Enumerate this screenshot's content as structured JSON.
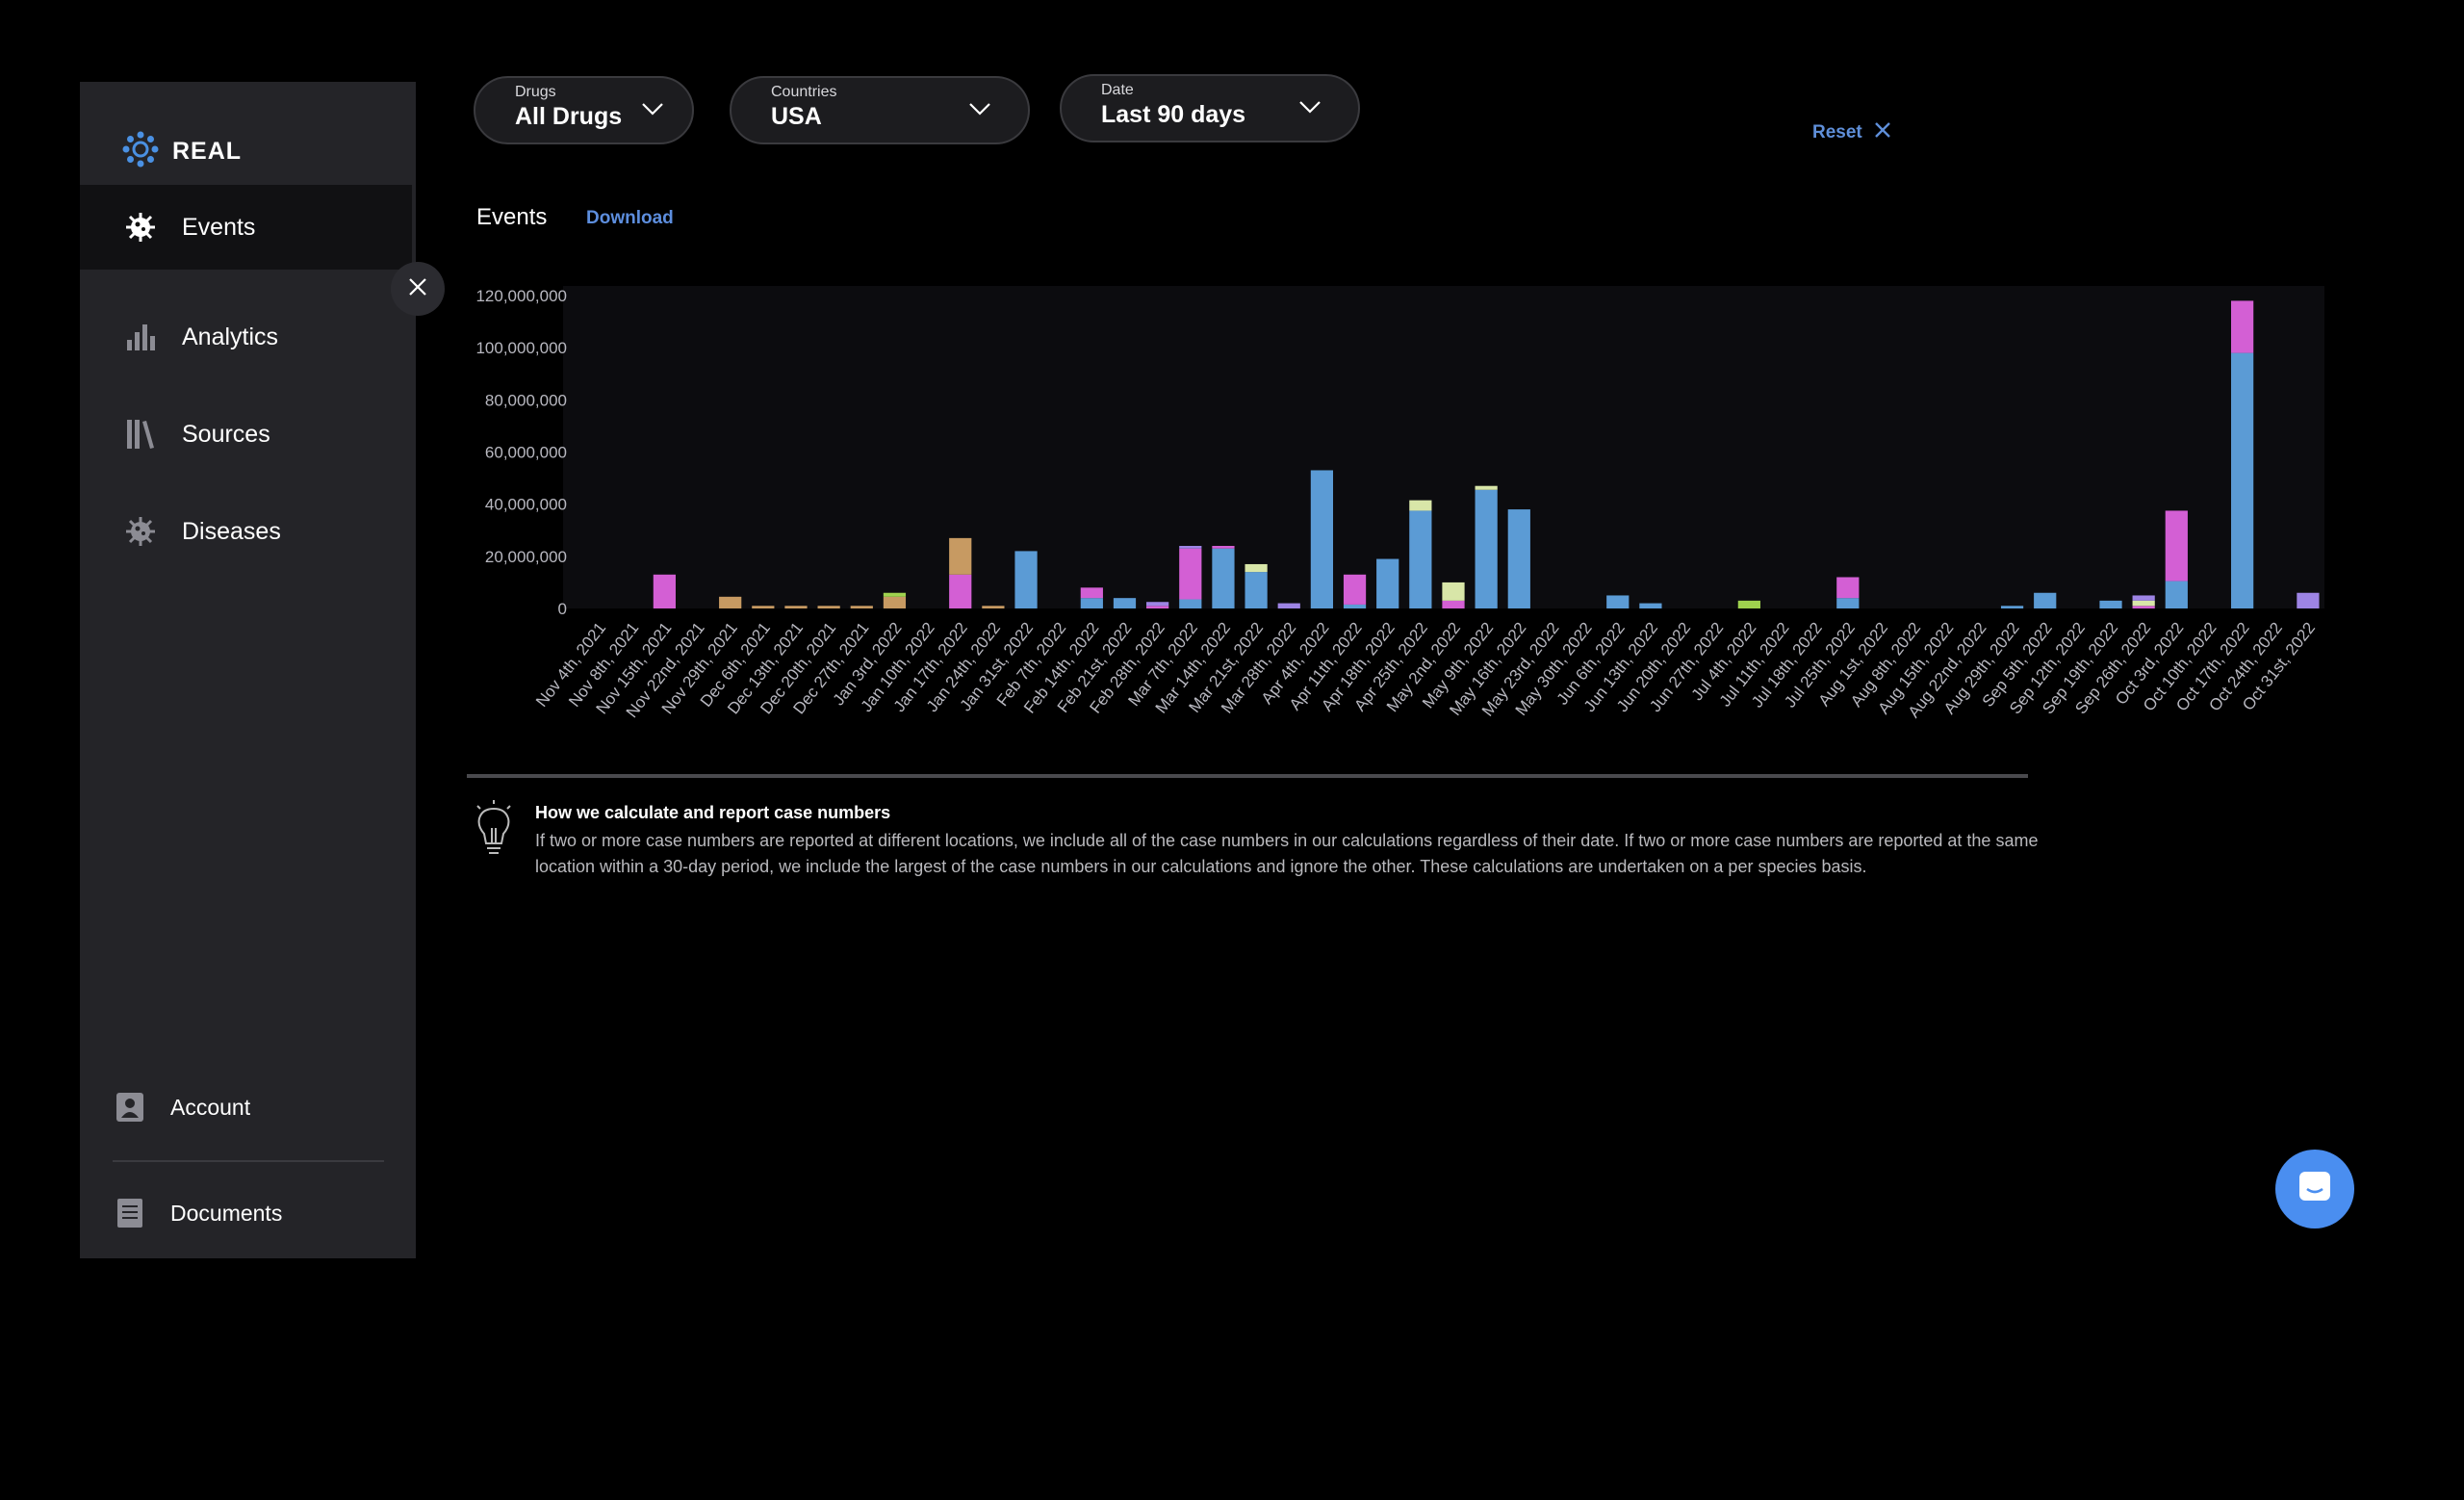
{
  "brand": {
    "name": "REAL"
  },
  "sidebar": {
    "items": [
      {
        "label": "Events",
        "icon": "virus-icon"
      },
      {
        "label": "Analytics",
        "icon": "bar-chart-icon"
      },
      {
        "label": "Sources",
        "icon": "books-icon"
      },
      {
        "label": "Diseases",
        "icon": "disease-icon"
      }
    ],
    "bottom": [
      {
        "label": "Account",
        "icon": "account-icon"
      },
      {
        "label": "Documents",
        "icon": "document-icon"
      }
    ]
  },
  "filters": {
    "drugs": {
      "label": "Drugs",
      "value": "All Drugs"
    },
    "countries": {
      "label": "Countries",
      "value": "USA"
    },
    "date": {
      "label": "Date",
      "value": "Last 90 days"
    }
  },
  "reset_label": "Reset",
  "tabs": {
    "events": "Events",
    "download": "Download"
  },
  "colors": {
    "blue": "#5b9bd5",
    "magenta": "#d35fd4",
    "orange": "#c79a62",
    "yellowgreen": "#d8e6a8",
    "lime": "#9fd24e",
    "purple": "#9d84e4",
    "accent": "#5d8ede"
  },
  "chart_data": {
    "type": "bar",
    "stacked": true,
    "ylim": [
      0,
      120000000
    ],
    "yticks": [
      "0",
      "20,000,000",
      "40,000,000",
      "60,000,000",
      "80,000,000",
      "100,000,000",
      "120,000,000"
    ],
    "categories": [
      "Nov 4th, 2021",
      "Nov 8th, 2021",
      "Nov 15th, 2021",
      "Nov 22nd, 2021",
      "Nov 29th, 2021",
      "Dec 6th, 2021",
      "Dec 13th, 2021",
      "Dec 20th, 2021",
      "Dec 27th, 2021",
      "Jan 3rd, 2022",
      "Jan 10th, 2022",
      "Jan 17th, 2022",
      "Jan 24th, 2022",
      "Jan 31st, 2022",
      "Feb 7th, 2022",
      "Feb 14th, 2022",
      "Feb 21st, 2022",
      "Feb 28th, 2022",
      "Mar 7th, 2022",
      "Mar 14th, 2022",
      "Mar 21st, 2022",
      "Mar 28th, 2022",
      "Apr 4th, 2022",
      "Apr 11th, 2022",
      "Apr 18th, 2022",
      "Apr 25th, 2022",
      "May 2nd, 2022",
      "May 9th, 2022",
      "May 16th, 2022",
      "May 23rd, 2022",
      "May 30th, 2022",
      "Jun 6th, 2022",
      "Jun 13th, 2022",
      "Jun 20th, 2022",
      "Jun 27th, 2022",
      "Jul 4th, 2022",
      "Jul 11th, 2022",
      "Jul 18th, 2022",
      "Jul 25th, 2022",
      "Aug 1st, 2022",
      "Aug 8th, 2022",
      "Aug 15th, 2022",
      "Aug 22nd, 2022",
      "Aug 29th, 2022",
      "Sep 5th, 2022",
      "Sep 12th, 2022",
      "Sep 19th, 2022",
      "Sep 26th, 2022",
      "Oct 3rd, 2022",
      "Oct 10th, 2022",
      "Oct 17th, 2022",
      "Oct 24th, 2022",
      "Oct 31st, 2022"
    ],
    "series": [
      {
        "color": "#5b9bd5",
        "values": [
          0,
          0,
          0,
          0,
          0,
          0,
          0,
          0,
          0,
          0,
          0,
          0,
          0,
          22000000,
          0,
          4000000,
          4000000,
          0,
          3500000,
          23000000,
          14000000,
          0,
          53000000,
          1500000,
          19000000,
          37500000,
          0,
          45500000,
          38000000,
          0,
          0,
          5000000,
          2000000,
          0,
          0,
          0,
          0,
          0,
          4000000,
          0,
          0,
          0,
          0,
          1000000,
          6000000,
          0,
          3000000,
          0,
          10500000,
          0,
          98000000,
          0,
          0
        ]
      },
      {
        "color": "#d35fd4",
        "values": [
          0,
          0,
          13000000,
          0,
          0,
          0,
          0,
          0,
          0,
          0,
          0,
          13000000,
          0,
          0,
          0,
          4000000,
          0,
          1000000,
          19500000,
          1000000,
          0,
          0,
          0,
          11500000,
          0,
          0,
          3000000,
          0,
          0,
          0,
          0,
          0,
          0,
          0,
          0,
          0,
          0,
          0,
          8000000,
          0,
          0,
          0,
          0,
          0,
          0,
          0,
          0,
          1000000,
          27000000,
          0,
          20000000,
          0,
          0
        ]
      },
      {
        "color": "#c79a62",
        "values": [
          0,
          0,
          0,
          0,
          4500000,
          1000000,
          1000000,
          1000000,
          1000000,
          4500000,
          0,
          14000000,
          1000000,
          0,
          0,
          0,
          0,
          0,
          0,
          0,
          0,
          0,
          0,
          0,
          0,
          0,
          0,
          0,
          0,
          0,
          0,
          0,
          0,
          0,
          0,
          0,
          0,
          0,
          0,
          0,
          0,
          0,
          0,
          0,
          0,
          0,
          0,
          0,
          0,
          0,
          0,
          0,
          0
        ]
      },
      {
        "color": "#d8e6a8",
        "values": [
          0,
          0,
          0,
          0,
          0,
          0,
          0,
          0,
          0,
          0,
          0,
          0,
          0,
          0,
          0,
          0,
          0,
          0,
          0,
          0,
          3000000,
          0,
          0,
          0,
          0,
          4000000,
          7000000,
          1500000,
          0,
          0,
          0,
          0,
          0,
          0,
          0,
          0,
          0,
          0,
          0,
          0,
          0,
          0,
          0,
          0,
          0,
          0,
          0,
          2000000,
          0,
          0,
          0,
          0,
          0
        ]
      },
      {
        "color": "#9fd24e",
        "values": [
          0,
          0,
          0,
          0,
          0,
          0,
          0,
          0,
          0,
          1500000,
          0,
          0,
          0,
          0,
          0,
          0,
          0,
          0,
          0,
          0,
          0,
          0,
          0,
          0,
          0,
          0,
          0,
          0,
          0,
          0,
          0,
          0,
          0,
          0,
          0,
          3000000,
          0,
          0,
          0,
          0,
          0,
          0,
          0,
          0,
          0,
          0,
          0,
          0,
          0,
          0,
          0,
          0,
          0
        ]
      },
      {
        "color": "#9d84e4",
        "values": [
          0,
          0,
          0,
          0,
          0,
          0,
          0,
          0,
          0,
          0,
          0,
          0,
          0,
          0,
          0,
          0,
          0,
          1500000,
          1000000,
          0,
          0,
          2000000,
          0,
          0,
          0,
          0,
          0,
          0,
          0,
          0,
          0,
          0,
          0,
          0,
          0,
          0,
          0,
          0,
          0,
          0,
          0,
          0,
          0,
          0,
          0,
          0,
          0,
          2000000,
          0,
          0,
          0,
          0,
          6000000
        ]
      }
    ]
  },
  "info": {
    "title": "How we calculate and report case numbers",
    "text": "If two or more case numbers are reported at different locations, we include all of the case numbers in our calculations regardless of their date. If two or more case numbers are reported at the same location within a 30-day period, we include the largest of the case numbers in our calculations and ignore the other. These calculations are undertaken on a per species basis."
  }
}
